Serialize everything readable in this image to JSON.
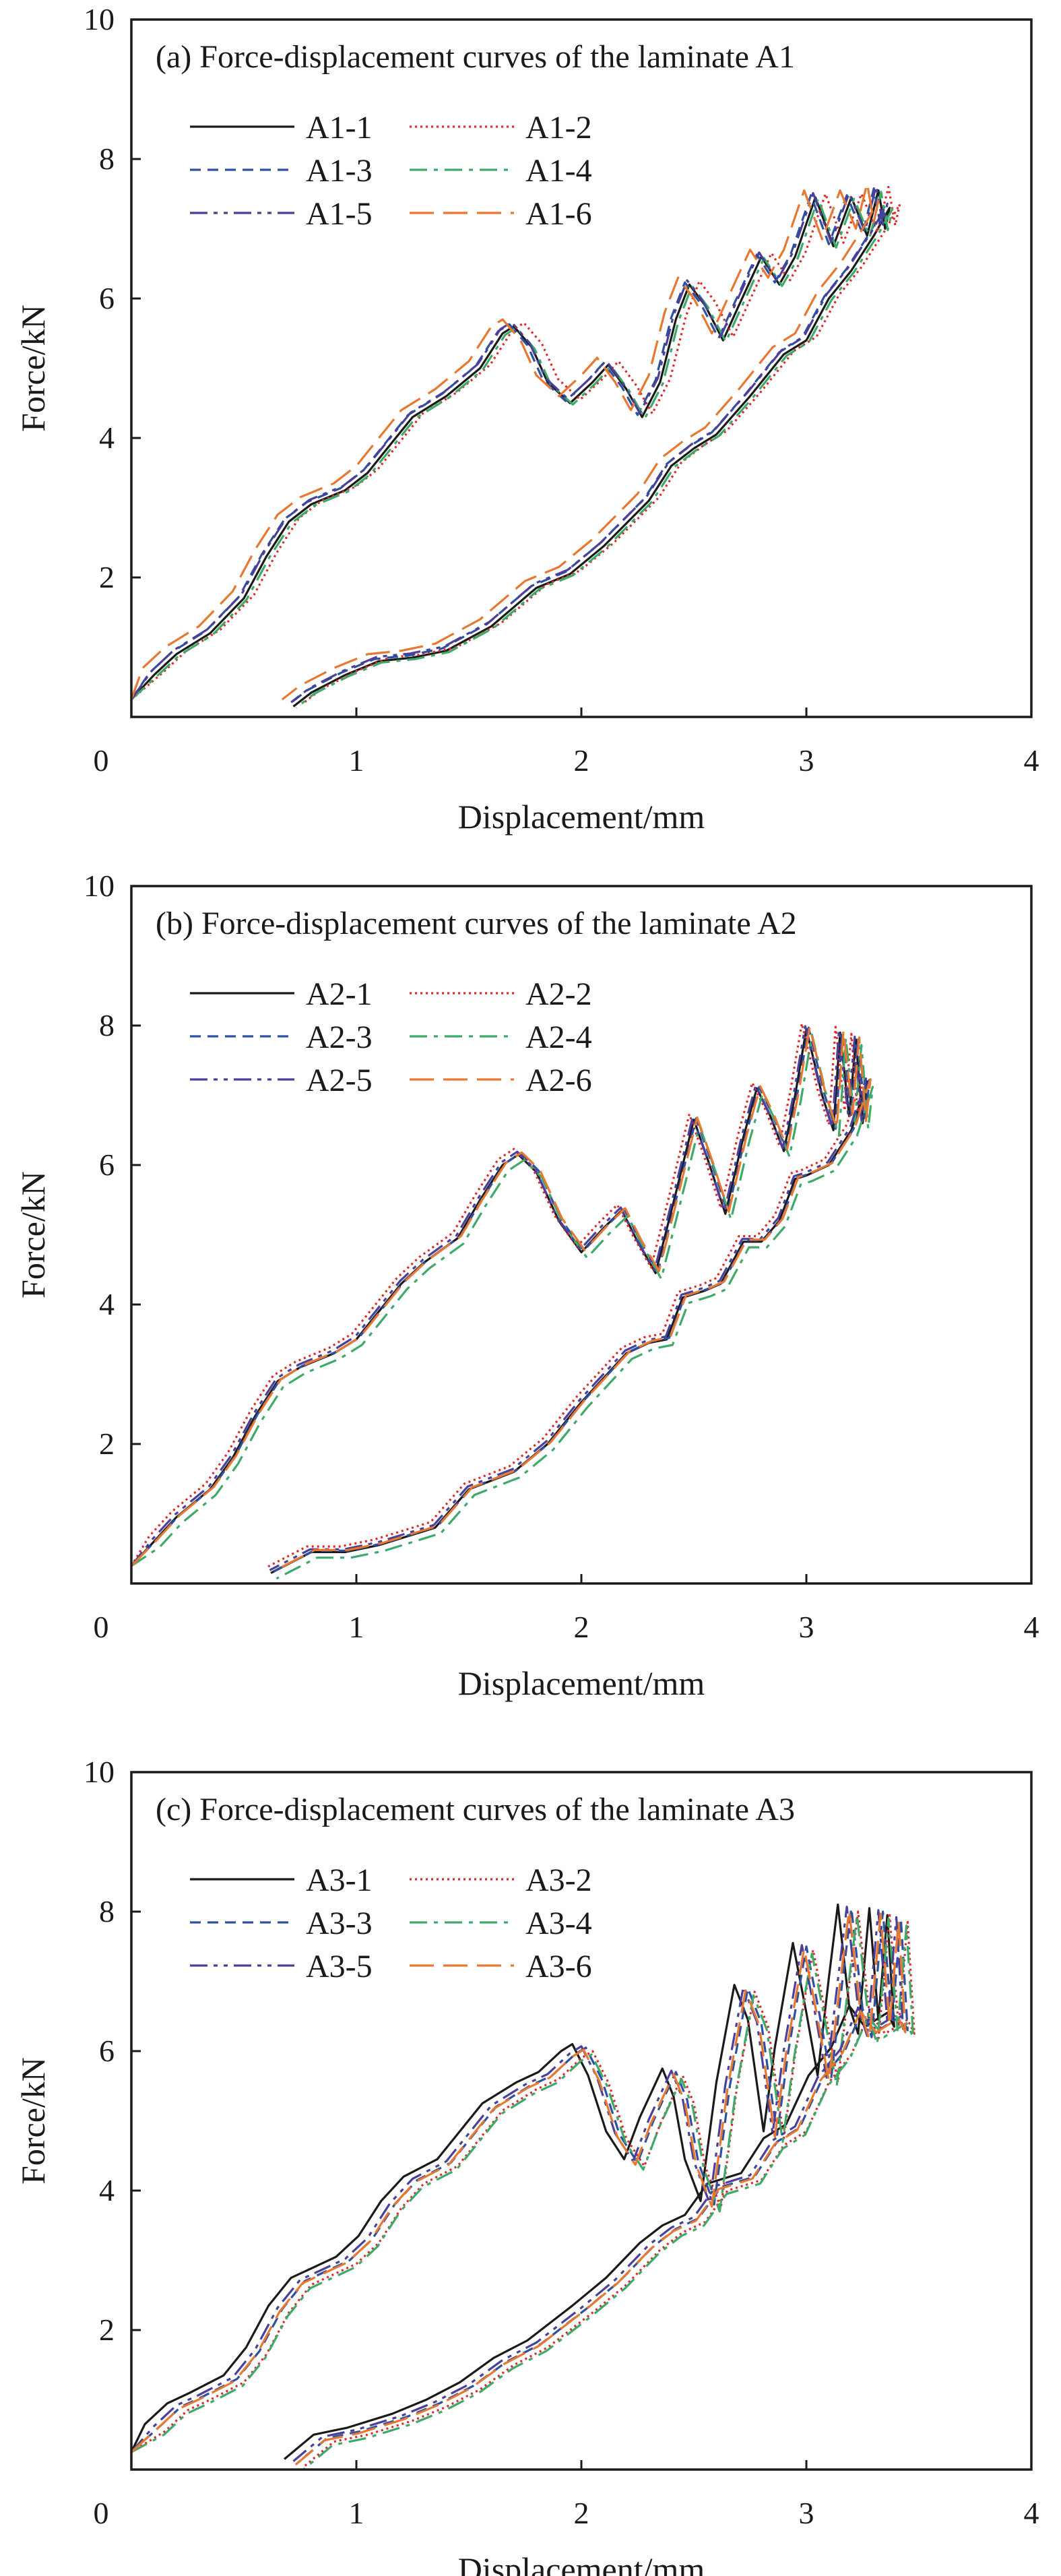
{
  "chart_data": [
    {
      "type": "line",
      "title": "(a) Force-displacement curves of the laminate A1",
      "xlabel": "Displacement/mm",
      "ylabel": "Force/kN",
      "xlim": [
        0,
        4
      ],
      "ylim": [
        0,
        10
      ],
      "xticks": [
        "1",
        "2",
        "3",
        "4"
      ],
      "yticks": [
        "2",
        "4",
        "6",
        "8",
        "10"
      ],
      "origin_label": "0",
      "grid": false,
      "legend_placement": "top-left",
      "base_curve": [
        [
          0,
          0.25
        ],
        [
          0.1,
          0.6
        ],
        [
          0.2,
          0.9
        ],
        [
          0.35,
          1.2
        ],
        [
          0.5,
          1.7
        ],
        [
          0.6,
          2.3
        ],
        [
          0.7,
          2.8
        ],
        [
          0.8,
          3.05
        ],
        [
          0.95,
          3.25
        ],
        [
          1.05,
          3.5
        ],
        [
          1.15,
          3.9
        ],
        [
          1.25,
          4.3
        ],
        [
          1.4,
          4.6
        ],
        [
          1.55,
          5.0
        ],
        [
          1.65,
          5.5
        ],
        [
          1.7,
          5.6
        ],
        [
          1.78,
          5.3
        ],
        [
          1.85,
          4.8
        ],
        [
          1.95,
          4.5
        ],
        [
          2.05,
          4.8
        ],
        [
          2.12,
          5.05
        ],
        [
          2.2,
          4.7
        ],
        [
          2.27,
          4.3
        ],
        [
          2.35,
          4.8
        ],
        [
          2.42,
          5.7
        ],
        [
          2.48,
          6.2
        ],
        [
          2.55,
          5.9
        ],
        [
          2.63,
          5.4
        ],
        [
          2.7,
          5.9
        ],
        [
          2.8,
          6.6
        ],
        [
          2.88,
          6.2
        ],
        [
          2.95,
          6.6
        ],
        [
          3.04,
          7.45
        ],
        [
          3.12,
          6.75
        ],
        [
          3.2,
          7.45
        ],
        [
          3.27,
          6.9
        ],
        [
          3.32,
          7.55
        ],
        [
          3.35,
          7.0
        ],
        [
          3.37,
          7.3
        ],
        [
          3.3,
          6.9
        ],
        [
          3.2,
          6.4
        ],
        [
          3.1,
          6.0
        ],
        [
          3.0,
          5.4
        ],
        [
          2.9,
          5.2
        ],
        [
          2.75,
          4.6
        ],
        [
          2.6,
          4.05
        ],
        [
          2.5,
          3.85
        ],
        [
          2.4,
          3.6
        ],
        [
          2.3,
          3.1
        ],
        [
          2.1,
          2.45
        ],
        [
          1.95,
          2.05
        ],
        [
          1.8,
          1.85
        ],
        [
          1.6,
          1.3
        ],
        [
          1.4,
          0.95
        ],
        [
          1.25,
          0.85
        ],
        [
          1.1,
          0.8
        ],
        [
          0.95,
          0.6
        ],
        [
          0.8,
          0.35
        ],
        [
          0.72,
          0.15
        ]
      ],
      "series": [
        {
          "name": "A1-1",
          "color": "#1a1a1a",
          "style": "solid",
          "x_shift": 0,
          "y_shift": 0
        },
        {
          "name": "A1-2",
          "color": "#e02828",
          "style": "dotted",
          "x_shift": 0.045,
          "y_shift": 0.05
        },
        {
          "name": "A1-3",
          "color": "#2f4fa0",
          "style": "dashed",
          "x_shift": -0.02,
          "y_shift": 0.03
        },
        {
          "name": "A1-4",
          "color": "#3daa6a",
          "style": "dash-dot",
          "x_shift": 0.012,
          "y_shift": -0.02
        },
        {
          "name": "A1-5",
          "color": "#4a3f9a",
          "style": "dash-dot-dot",
          "x_shift": -0.01,
          "y_shift": 0.06
        },
        {
          "name": "A1-6",
          "color": "#e87830",
          "style": "long-dash",
          "x_shift": -0.05,
          "y_shift": 0.1
        }
      ]
    },
    {
      "type": "line",
      "title": "(b) Force-displacement curves of the laminate A2",
      "xlabel": "Displacement/mm",
      "ylabel": "Force/kN",
      "xlim": [
        0,
        4
      ],
      "ylim": [
        0,
        10
      ],
      "xticks": [
        "1",
        "2",
        "3",
        "4"
      ],
      "yticks": [
        "2",
        "4",
        "6",
        "8",
        "10"
      ],
      "origin_label": "0",
      "grid": false,
      "legend_placement": "top-left",
      "base_curve": [
        [
          0,
          0.25
        ],
        [
          0.1,
          0.6
        ],
        [
          0.2,
          0.95
        ],
        [
          0.35,
          1.35
        ],
        [
          0.45,
          1.8
        ],
        [
          0.55,
          2.4
        ],
        [
          0.65,
          2.9
        ],
        [
          0.75,
          3.1
        ],
        [
          0.9,
          3.3
        ],
        [
          1.0,
          3.5
        ],
        [
          1.1,
          3.9
        ],
        [
          1.2,
          4.3
        ],
        [
          1.3,
          4.6
        ],
        [
          1.45,
          4.95
        ],
        [
          1.55,
          5.5
        ],
        [
          1.65,
          6.0
        ],
        [
          1.72,
          6.15
        ],
        [
          1.8,
          5.9
        ],
        [
          1.9,
          5.2
        ],
        [
          2.0,
          4.75
        ],
        [
          2.1,
          5.1
        ],
        [
          2.18,
          5.35
        ],
        [
          2.25,
          4.9
        ],
        [
          2.33,
          4.45
        ],
        [
          2.42,
          5.6
        ],
        [
          2.5,
          6.65
        ],
        [
          2.57,
          6.0
        ],
        [
          2.64,
          5.3
        ],
        [
          2.72,
          6.4
        ],
        [
          2.78,
          7.1
        ],
        [
          2.84,
          6.7
        ],
        [
          2.9,
          6.2
        ],
        [
          2.95,
          7.0
        ],
        [
          3.0,
          7.95
        ],
        [
          3.07,
          7.0
        ],
        [
          3.12,
          6.5
        ],
        [
          3.15,
          7.9
        ],
        [
          3.19,
          6.7
        ],
        [
          3.22,
          7.8
        ],
        [
          3.25,
          6.6
        ],
        [
          3.27,
          7.2
        ],
        [
          3.2,
          6.5
        ],
        [
          3.1,
          6.0
        ],
        [
          3.0,
          5.85
        ],
        [
          2.95,
          5.8
        ],
        [
          2.88,
          5.2
        ],
        [
          2.8,
          4.9
        ],
        [
          2.72,
          4.9
        ],
        [
          2.62,
          4.3
        ],
        [
          2.55,
          4.2
        ],
        [
          2.45,
          4.1
        ],
        [
          2.38,
          3.5
        ],
        [
          2.3,
          3.45
        ],
        [
          2.2,
          3.3
        ],
        [
          2.0,
          2.6
        ],
        [
          1.85,
          2.0
        ],
        [
          1.7,
          1.6
        ],
        [
          1.5,
          1.35
        ],
        [
          1.35,
          0.8
        ],
        [
          1.1,
          0.55
        ],
        [
          0.95,
          0.45
        ],
        [
          0.8,
          0.45
        ],
        [
          0.62,
          0.15
        ]
      ],
      "series": [
        {
          "name": "A2-1",
          "color": "#1a1a1a",
          "style": "solid",
          "x_shift": 0,
          "y_shift": 0
        },
        {
          "name": "A2-2",
          "color": "#e02828",
          "style": "dotted",
          "x_shift": -0.02,
          "y_shift": 0.08
        },
        {
          "name": "A2-3",
          "color": "#2f4fa0",
          "style": "dashed",
          "x_shift": 0.01,
          "y_shift": 0.02
        },
        {
          "name": "A2-4",
          "color": "#3daa6a",
          "style": "dash-dot",
          "x_shift": 0.025,
          "y_shift": -0.08
        },
        {
          "name": "A2-5",
          "color": "#4a3f9a",
          "style": "dash-dot-dot",
          "x_shift": -0.005,
          "y_shift": 0.04
        },
        {
          "name": "A2-6",
          "color": "#e87830",
          "style": "long-dash",
          "x_shift": 0.015,
          "y_shift": 0.03
        }
      ]
    },
    {
      "type": "line",
      "title": "(c) Force-displacement curves of the laminate A3",
      "xlabel": "Displacement/mm",
      "ylabel": "Force/kN",
      "xlim": [
        0,
        4
      ],
      "ylim": [
        0,
        10
      ],
      "xticks": [
        "1",
        "2",
        "3",
        "4"
      ],
      "yticks": [
        "2",
        "4",
        "6",
        "8",
        "10"
      ],
      "origin_label": "0",
      "grid": false,
      "legend_placement": "top-left",
      "base_curve": [
        [
          0,
          0.25
        ],
        [
          0.1,
          0.6
        ],
        [
          0.2,
          0.9
        ],
        [
          0.3,
          1.05
        ],
        [
          0.45,
          1.3
        ],
        [
          0.55,
          1.7
        ],
        [
          0.65,
          2.3
        ],
        [
          0.75,
          2.7
        ],
        [
          0.85,
          2.85
        ],
        [
          0.95,
          3.0
        ],
        [
          1.05,
          3.3
        ],
        [
          1.15,
          3.8
        ],
        [
          1.25,
          4.15
        ],
        [
          1.4,
          4.4
        ],
        [
          1.5,
          4.8
        ],
        [
          1.6,
          5.2
        ],
        [
          1.75,
          5.5
        ],
        [
          1.85,
          5.65
        ],
        [
          1.95,
          5.95
        ],
        [
          2.0,
          6.05
        ],
        [
          2.07,
          5.6
        ],
        [
          2.15,
          4.8
        ],
        [
          2.23,
          4.4
        ],
        [
          2.3,
          5.0
        ],
        [
          2.4,
          5.7
        ],
        [
          2.45,
          5.3
        ],
        [
          2.5,
          4.4
        ],
        [
          2.57,
          3.8
        ],
        [
          2.64,
          5.5
        ],
        [
          2.72,
          6.9
        ],
        [
          2.78,
          6.4
        ],
        [
          2.85,
          4.8
        ],
        [
          2.9,
          6.0
        ],
        [
          2.98,
          7.5
        ],
        [
          3.04,
          6.5
        ],
        [
          3.09,
          5.6
        ],
        [
          3.14,
          7.0
        ],
        [
          3.18,
          8.05
        ],
        [
          3.23,
          6.6
        ],
        [
          3.27,
          6.2
        ],
        [
          3.32,
          8.0
        ],
        [
          3.36,
          6.4
        ],
        [
          3.4,
          7.9
        ],
        [
          3.43,
          6.3
        ],
        [
          3.4,
          6.5
        ],
        [
          3.3,
          6.3
        ],
        [
          3.23,
          6.6
        ],
        [
          3.15,
          6.0
        ],
        [
          3.05,
          5.6
        ],
        [
          2.95,
          4.9
        ],
        [
          2.85,
          4.7
        ],
        [
          2.75,
          4.2
        ],
        [
          2.6,
          4.05
        ],
        [
          2.5,
          3.6
        ],
        [
          2.4,
          3.45
        ],
        [
          2.3,
          3.2
        ],
        [
          2.15,
          2.7
        ],
        [
          2.0,
          2.3
        ],
        [
          1.8,
          1.8
        ],
        [
          1.65,
          1.55
        ],
        [
          1.5,
          1.2
        ],
        [
          1.35,
          0.95
        ],
        [
          1.2,
          0.75
        ],
        [
          1.0,
          0.55
        ],
        [
          0.85,
          0.45
        ],
        [
          0.72,
          0.1
        ]
      ],
      "series": [
        {
          "name": "A3-1",
          "color": "#1a1a1a",
          "style": "solid",
          "x_shift": -0.04,
          "y_shift": 0.05
        },
        {
          "name": "A3-2",
          "color": "#e02828",
          "style": "dotted",
          "x_shift": 0.05,
          "y_shift": -0.05
        },
        {
          "name": "A3-3",
          "color": "#2f4fa0",
          "style": "dashed",
          "x_shift": 0.02,
          "y_shift": 0
        },
        {
          "name": "A3-4",
          "color": "#3daa6a",
          "style": "dash-dot",
          "x_shift": 0.045,
          "y_shift": -0.1
        },
        {
          "name": "A3-5",
          "color": "#4a3f9a",
          "style": "dash-dot-dot",
          "x_shift": 0.0,
          "y_shift": 0.02
        },
        {
          "name": "A3-6",
          "color": "#e87830",
          "style": "long-dash",
          "x_shift": 0.01,
          "y_shift": -0.03
        }
      ]
    }
  ]
}
